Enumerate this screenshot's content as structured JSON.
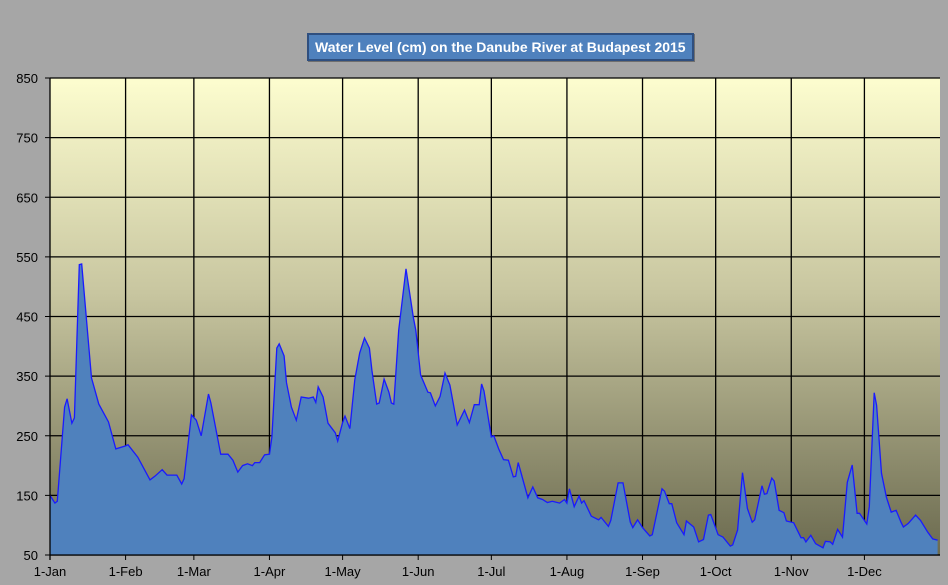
{
  "chart_data": {
    "type": "area",
    "title": "Water Level (cm) on the Danube River at Budapest 2015",
    "xlabel": "",
    "ylabel": "",
    "ylim": [
      50,
      850
    ],
    "yticks": [
      "50",
      "150",
      "250",
      "350",
      "450",
      "550",
      "650",
      "750",
      "850"
    ],
    "xtick_labels": [
      "1-Jan",
      "1-Feb",
      "1-Mar",
      "1-Apr",
      "1-May",
      "1-Jun",
      "1-Jul",
      "1-Aug",
      "1-Sep",
      "1-Oct",
      "1-Nov",
      "1-Dec"
    ],
    "xtick_days": [
      0,
      31,
      59,
      90,
      120,
      151,
      181,
      212,
      243,
      273,
      304,
      334
    ],
    "x_unit": "day of year",
    "xlim": [
      0,
      365
    ],
    "grid": true,
    "legend": "none",
    "colors": {
      "fill": "#4f81bd",
      "line": "#1a1aff",
      "plot_top": "#fdfdcf",
      "plot_bottom": "#6b6a4f",
      "background": "#a6a6a6"
    },
    "series": [
      {
        "name": "Water Level (cm)",
        "points": [
          [
            0,
            150
          ],
          [
            2,
            137
          ],
          [
            3,
            140
          ],
          [
            6,
            298
          ],
          [
            7,
            312
          ],
          [
            9,
            271
          ],
          [
            10,
            280
          ],
          [
            12,
            537
          ],
          [
            13,
            538
          ],
          [
            17,
            347
          ],
          [
            20,
            303
          ],
          [
            24,
            273
          ],
          [
            27,
            228
          ],
          [
            31,
            233
          ],
          [
            32,
            235
          ],
          [
            36,
            214
          ],
          [
            41,
            176
          ],
          [
            43,
            182
          ],
          [
            46,
            193
          ],
          [
            48,
            184
          ],
          [
            52,
            184
          ],
          [
            54,
            169
          ],
          [
            55,
            178
          ],
          [
            58,
            285
          ],
          [
            60,
            276
          ],
          [
            62,
            250
          ],
          [
            65,
            320
          ],
          [
            66,
            305
          ],
          [
            70,
            219
          ],
          [
            73,
            219
          ],
          [
            75,
            209
          ],
          [
            77,
            189
          ],
          [
            79,
            200
          ],
          [
            81,
            203
          ],
          [
            83,
            200
          ],
          [
            84,
            205
          ],
          [
            86,
            205
          ],
          [
            88,
            218
          ],
          [
            90,
            219
          ],
          [
            91,
            248
          ],
          [
            93,
            397
          ],
          [
            94,
            404
          ],
          [
            96,
            384
          ],
          [
            97,
            339
          ],
          [
            99,
            298
          ],
          [
            101,
            276
          ],
          [
            103,
            315
          ],
          [
            106,
            313
          ],
          [
            108,
            315
          ],
          [
            109,
            306
          ],
          [
            110,
            332
          ],
          [
            112,
            315
          ],
          [
            114,
            271
          ],
          [
            117,
            255
          ],
          [
            118,
            241
          ],
          [
            120,
            272
          ],
          [
            121,
            283
          ],
          [
            123,
            262
          ],
          [
            125,
            344
          ],
          [
            127,
            389
          ],
          [
            129,
            414
          ],
          [
            131,
            397
          ],
          [
            132,
            360
          ],
          [
            134,
            303
          ],
          [
            135,
            305
          ],
          [
            137,
            345
          ],
          [
            139,
            323
          ],
          [
            140,
            305
          ],
          [
            141,
            303
          ],
          [
            143,
            427
          ],
          [
            146,
            530
          ],
          [
            149,
            449
          ],
          [
            150,
            427
          ],
          [
            152,
            352
          ],
          [
            155,
            323
          ],
          [
            156,
            322
          ],
          [
            158,
            300
          ],
          [
            160,
            316
          ],
          [
            162,
            355
          ],
          [
            164,
            335
          ],
          [
            167,
            268
          ],
          [
            170,
            293
          ],
          [
            172,
            272
          ],
          [
            174,
            302
          ],
          [
            176,
            302
          ],
          [
            177,
            337
          ],
          [
            178,
            325
          ],
          [
            181,
            248
          ],
          [
            182,
            250
          ],
          [
            184,
            228
          ],
          [
            186,
            210
          ],
          [
            188,
            209
          ],
          [
            190,
            181
          ],
          [
            191,
            182
          ],
          [
            192,
            205
          ],
          [
            196,
            146
          ],
          [
            198,
            164
          ],
          [
            200,
            146
          ],
          [
            202,
            143
          ],
          [
            204,
            138
          ],
          [
            206,
            140
          ],
          [
            209,
            137
          ],
          [
            211,
            143
          ],
          [
            212,
            137
          ],
          [
            213,
            161
          ],
          [
            215,
            131
          ],
          [
            217,
            149
          ],
          [
            218,
            137
          ],
          [
            219,
            141
          ],
          [
            222,
            115
          ],
          [
            225,
            109
          ],
          [
            226,
            113
          ],
          [
            229,
            98
          ],
          [
            230,
            108
          ],
          [
            233,
            171
          ],
          [
            235,
            171
          ],
          [
            238,
            105
          ],
          [
            239,
            96
          ],
          [
            241,
            109
          ],
          [
            243,
            96
          ],
          [
            246,
            82
          ],
          [
            247,
            84
          ],
          [
            251,
            161
          ],
          [
            252,
            157
          ],
          [
            254,
            136
          ],
          [
            255,
            136
          ],
          [
            257,
            104
          ],
          [
            260,
            84
          ],
          [
            261,
            107
          ],
          [
            264,
            97
          ],
          [
            266,
            72
          ],
          [
            268,
            76
          ],
          [
            270,
            117
          ],
          [
            271,
            118
          ],
          [
            274,
            84
          ],
          [
            276,
            80
          ],
          [
            279,
            65
          ],
          [
            280,
            67
          ],
          [
            282,
            92
          ],
          [
            284,
            188
          ],
          [
            286,
            128
          ],
          [
            288,
            105
          ],
          [
            289,
            109
          ],
          [
            292,
            166
          ],
          [
            293,
            152
          ],
          [
            294,
            153
          ],
          [
            296,
            179
          ],
          [
            297,
            174
          ],
          [
            299,
            125
          ],
          [
            301,
            121
          ],
          [
            302,
            107
          ],
          [
            305,
            104
          ],
          [
            308,
            79
          ],
          [
            309,
            79
          ],
          [
            310,
            72
          ],
          [
            312,
            83
          ],
          [
            314,
            69
          ],
          [
            317,
            62
          ],
          [
            318,
            73
          ],
          [
            320,
            72
          ],
          [
            321,
            68
          ],
          [
            323,
            93
          ],
          [
            325,
            80
          ],
          [
            327,
            172
          ],
          [
            329,
            201
          ],
          [
            331,
            120
          ],
          [
            332,
            120
          ],
          [
            335,
            102
          ],
          [
            336,
            131
          ],
          [
            338,
            322
          ],
          [
            339,
            301
          ],
          [
            341,
            187
          ],
          [
            343,
            147
          ],
          [
            345,
            122
          ],
          [
            347,
            125
          ],
          [
            349,
            105
          ],
          [
            350,
            97
          ],
          [
            352,
            103
          ],
          [
            355,
            117
          ],
          [
            357,
            108
          ],
          [
            360,
            88
          ],
          [
            362,
            77
          ],
          [
            364,
            75
          ]
        ]
      }
    ]
  }
}
